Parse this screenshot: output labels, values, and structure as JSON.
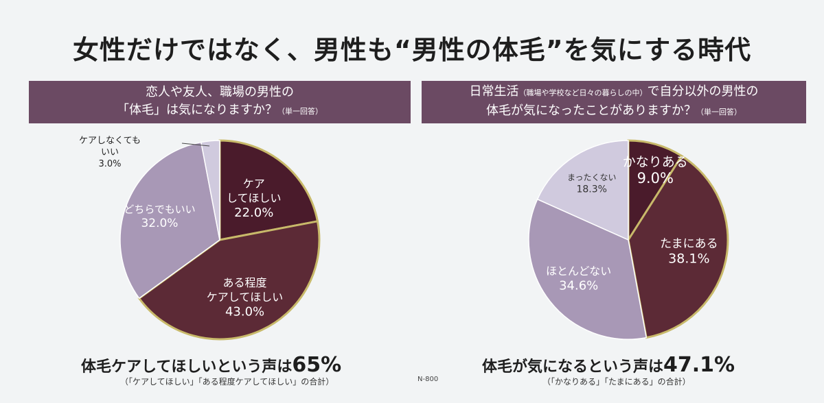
{
  "title": "女性だけではなく、男性も“男性の体毛”を気にする時代",
  "q1": {
    "line1": "恋人や友人、職場の男性の",
    "line2": "「体毛」は気になりますか？",
    "note": "（単一回答）"
  },
  "q2": {
    "line1a": "日常生活",
    "line1b": "（職場や学校など日々の暮らしの中）",
    "line1c": "で自分以外の男性の",
    "line2": "体毛が気になったことがありますか？",
    "note": "（単一回答）"
  },
  "summary1": {
    "text": "体毛ケアしてほしいという声は",
    "value": "65%",
    "note": "（「ケアしてほしい」「ある程度ケアしてほしい」の合計）"
  },
  "summary2": {
    "text": "体毛が気になるという声は",
    "value": "47.1%",
    "note": "（「かなりある」「たまにある」の合計）"
  },
  "code": "N-800",
  "colors": {
    "dark": "#4a1b2b",
    "medium": "#5c2a36",
    "light": "#a898b6",
    "lighter": "#d0cade",
    "outline": "#c8b96a",
    "header": "#6b4a63"
  },
  "chart_data": [
    {
      "type": "pie",
      "slices": [
        {
          "label": [
            "ケア",
            "してほしい"
          ],
          "value": 22.0,
          "display": "22.0%",
          "color": "#4a1b2b"
        },
        {
          "label": [
            "ある程度",
            "ケアしてほしい"
          ],
          "value": 43.0,
          "display": "43.0%",
          "color": "#5c2a36"
        },
        {
          "label": [
            "どちらでもいい"
          ],
          "value": 32.0,
          "display": "32.0%",
          "color": "#a898b6"
        },
        {
          "label": [
            "ケアしなくても",
            "いい"
          ],
          "value": 3.0,
          "display": "3.0%",
          "color": "#d0cade"
        }
      ]
    },
    {
      "type": "pie",
      "slices": [
        {
          "label": [
            "かなりある"
          ],
          "value": 9.0,
          "display": "9.0%",
          "color": "#4a1b2b"
        },
        {
          "label": [
            "たまにある"
          ],
          "value": 38.1,
          "display": "38.1%",
          "color": "#5c2a36"
        },
        {
          "label": [
            "ほとんどない"
          ],
          "value": 34.6,
          "display": "34.6%",
          "color": "#a898b6"
        },
        {
          "label": [
            "まったくない"
          ],
          "value": 18.3,
          "display": "18.3%",
          "color": "#d0cade"
        }
      ]
    }
  ]
}
